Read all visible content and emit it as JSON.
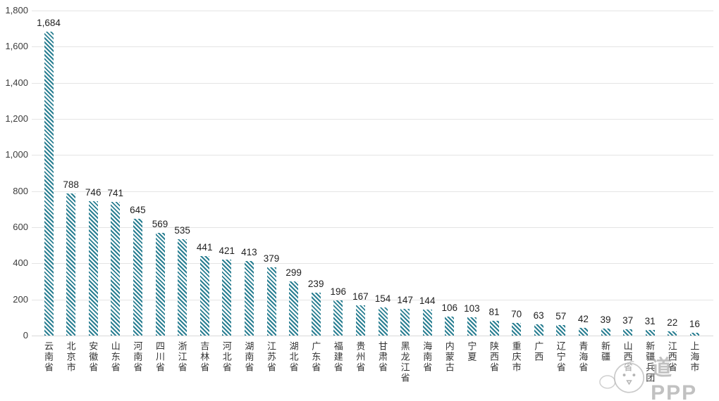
{
  "chart_data": {
    "type": "bar",
    "title": "",
    "xlabel": "",
    "ylabel": "",
    "categories": [
      "云南省",
      "北京市",
      "安徽省",
      "山东省",
      "河南省",
      "四川省",
      "浙江省",
      "吉林省",
      "河北省",
      "湖南省",
      "江苏省",
      "湖北省",
      "广东省",
      "福建省",
      "贵州省",
      "甘肃省",
      "黑龙江省",
      "海南省",
      "内蒙古",
      "宁夏",
      "陕西省",
      "重庆市",
      "广西",
      "辽宁省",
      "青海省",
      "新疆",
      "山西省",
      "新疆兵团",
      "江西省",
      "上海市"
    ],
    "values": [
      1684,
      788,
      746,
      741,
      645,
      569,
      535,
      441,
      421,
      413,
      379,
      299,
      239,
      196,
      167,
      154,
      147,
      144,
      106,
      103,
      81,
      70,
      63,
      57,
      42,
      39,
      37,
      31,
      22,
      16
    ],
    "value_labels": [
      "1,684",
      "788",
      "746",
      "741",
      "645",
      "569",
      "535",
      "441",
      "421",
      "413",
      "379",
      "299",
      "239",
      "196",
      "167",
      "154",
      "147",
      "144",
      "106",
      "103",
      "81",
      "70",
      "63",
      "57",
      "42",
      "39",
      "37",
      "31",
      "22",
      "16"
    ],
    "y_ticks": [
      0,
      200,
      400,
      600,
      800,
      1000,
      1200,
      1400,
      1600,
      1800
    ],
    "y_tick_labels": [
      "0",
      "200",
      "400",
      "600",
      "800",
      "1,000",
      "1,200",
      "1,400",
      "1,600",
      "1,800"
    ],
    "ylim": [
      0,
      1800
    ],
    "grid": true,
    "legend": "none",
    "bar_style": "diagonal-hatch",
    "bar_color": "#2a7f92",
    "gridline_color": "#e4e4e4",
    "watermark_text": "道PPP"
  }
}
